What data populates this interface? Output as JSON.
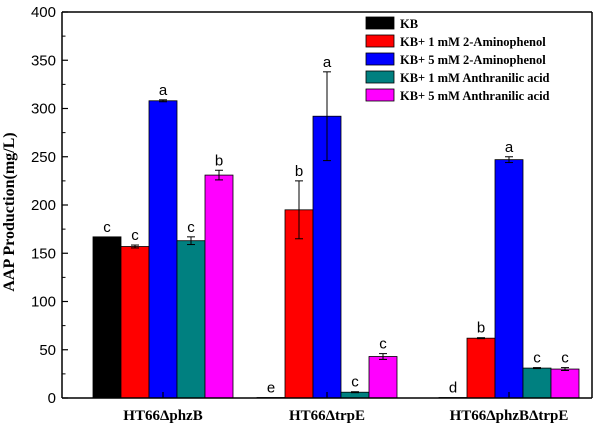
{
  "chart_data": {
    "type": "bar",
    "ylabel": "AAP Production(mg/L)",
    "xlabel": "",
    "ylim": [
      0,
      400
    ],
    "yticks": [
      "0",
      "50",
      "100",
      "150",
      "200",
      "250",
      "300",
      "350",
      "400"
    ],
    "categories": [
      "HT66ΔphzB",
      "HT66ΔtrpE",
      "HT66ΔphzBΔtrpE"
    ],
    "legend_position": "top-right",
    "grid": false,
    "series": [
      {
        "name": "KB",
        "color": "#000000",
        "values": [
          167,
          0.5,
          0.5
        ],
        "errors": [
          0,
          0,
          0
        ],
        "letters": [
          "c",
          "e",
          "d"
        ]
      },
      {
        "name": "KB+ 1 mM 2-Aminophenol",
        "color": "#ff0000",
        "values": [
          157,
          195,
          62
        ],
        "errors": [
          1.5,
          30,
          0.5
        ],
        "letters": [
          "c",
          "b",
          "b"
        ]
      },
      {
        "name": "KB+ 5 mM 2-Aminophenol",
        "color": "#0000ff",
        "values": [
          308,
          292,
          247
        ],
        "errors": [
          1,
          46,
          3
        ],
        "letters": [
          "a",
          "a",
          "a"
        ]
      },
      {
        "name": "KB+ 1 mM Anthranilic acid",
        "color": "#008080",
        "values": [
          163,
          6,
          31
        ],
        "errors": [
          4,
          0.5,
          0.5
        ],
        "letters": [
          "c",
          "c",
          "c"
        ]
      },
      {
        "name": "KB+ 5 mM Anthranilic acid",
        "color": "#ff00ff",
        "values": [
          231,
          43,
          30
        ],
        "errors": [
          5,
          3,
          1.5
        ],
        "letters": [
          "b",
          "c",
          "c"
        ]
      }
    ]
  }
}
